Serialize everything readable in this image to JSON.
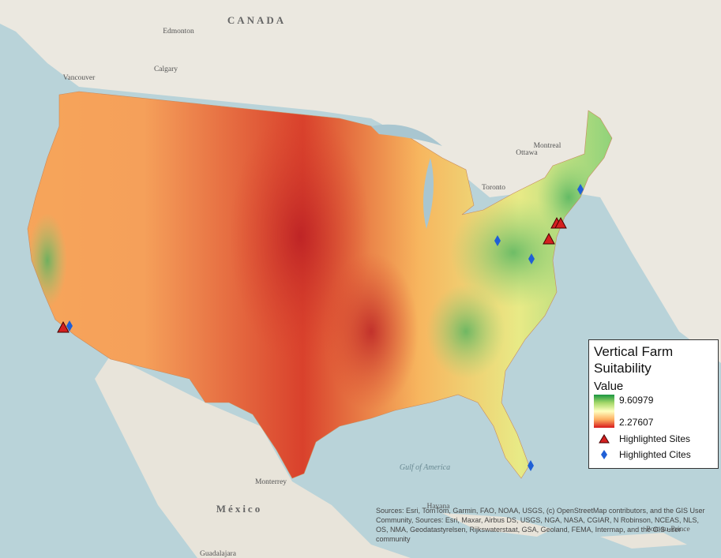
{
  "map": {
    "places": [
      {
        "label": "CANADA",
        "kind": "country"
      },
      {
        "label": "Edmonton",
        "kind": "city"
      },
      {
        "label": "Calgary",
        "kind": "city"
      },
      {
        "label": "Vancouver",
        "kind": "city"
      },
      {
        "label": "Ottawa",
        "kind": "city"
      },
      {
        "label": "Montreal",
        "kind": "city"
      },
      {
        "label": "Toronto",
        "kind": "city"
      },
      {
        "label": "Monterrey",
        "kind": "city"
      },
      {
        "label": "México",
        "kind": "country"
      },
      {
        "label": "Havana",
        "kind": "city"
      },
      {
        "label": "Guadalajara",
        "kind": "city"
      },
      {
        "label": "Port-au-Prince",
        "kind": "city"
      },
      {
        "label": "Gulf of America",
        "kind": "water"
      }
    ],
    "legend": {
      "title": "Vertical Farm Suitability",
      "field": "Value",
      "high": 9.60979,
      "low": 2.27607,
      "items": [
        "Highlighted Sites",
        "Highlighted Cites"
      ]
    },
    "attribution": "Sources: Esri, TomTom, Garmin, FAO, NOAA, USGS, (c) OpenStreetMap contributors, and the GIS User Community, Sources: Esri, Maxar, Airbus DS, USGS, NGA, NASA, CGIAR, N Robinson, NCEAS, NLS, OS, NMA, Geodatastyrelsen, Rijkswaterstaat, GSA, Geoland, FEMA, Intermap, and the GIS user community"
  }
}
